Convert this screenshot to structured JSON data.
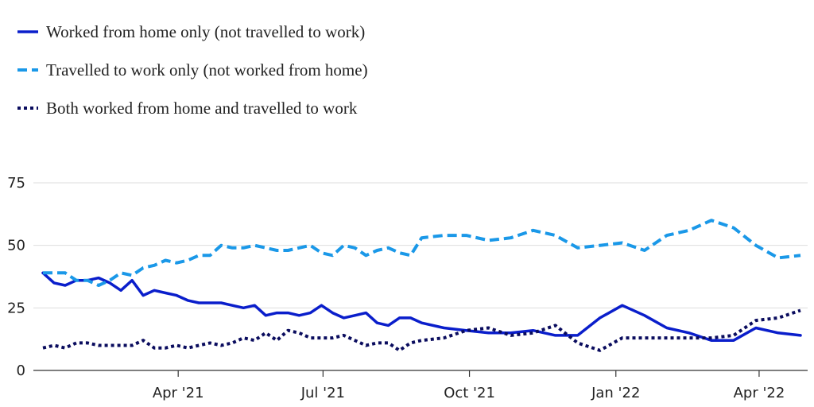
{
  "chart_data": {
    "type": "line",
    "title": "",
    "xlabel": "",
    "ylabel": "",
    "ylim": [
      0,
      75
    ],
    "yticks": [
      "0",
      "25",
      "50",
      "75"
    ],
    "xticks": [
      "Apr '21",
      "Jul '21",
      "Oct '21",
      "Jan '22",
      "Apr '22"
    ],
    "grid": "horizontal",
    "legend": "top-left",
    "x": [
      "Jan 6 '21",
      "Jan 13 '21",
      "Jan 20 '21",
      "Jan 27 '21",
      "Feb 3 '21",
      "Feb 10 '21",
      "Feb 17 '21",
      "Feb 24 '21",
      "Mar 3 '21",
      "Mar 10 '21",
      "Mar 17 '21",
      "Mar 24 '21",
      "Mar 31 '21",
      "Apr 7 '21",
      "Apr 14 '21",
      "Apr 21 '21",
      "Apr 28 '21",
      "May 5 '21",
      "May 12 '21",
      "May 19 '21",
      "May 26 '21",
      "Jun 2 '21",
      "Jun 9 '21",
      "Jun 16 '21",
      "Jun 23 '21",
      "Jun 30 '21",
      "Jul 7 '21",
      "Jul 14 '21",
      "Jul 21 '21",
      "Jul 28 '21",
      "Aug 4 '21",
      "Aug 11 '21",
      "Aug 18 '21",
      "Aug 25 '21",
      "Sep 1 '21",
      "Sep 15 '21",
      "Sep 29 '21",
      "Oct 13 '21",
      "Oct 27 '21",
      "Nov 10 '21",
      "Nov 24 '21",
      "Dec 8 '21",
      "Dec 22 '21",
      "Jan 5 '22",
      "Jan 19 '22",
      "Feb 2 '22",
      "Feb 16 '22",
      "Mar 2 '22",
      "Mar 16 '22",
      "Mar 30 '22",
      "Apr 13 '22",
      "Apr 27 '22"
    ],
    "series": [
      {
        "name": "Worked from home only (not travelled to work)",
        "color": "#0a1ecb",
        "style": "solid",
        "values": [
          39,
          35,
          34,
          36,
          36,
          37,
          35,
          32,
          36,
          30,
          32,
          31,
          30,
          28,
          27,
          27,
          27,
          26,
          25,
          26,
          22,
          23,
          23,
          22,
          23,
          26,
          23,
          21,
          22,
          23,
          19,
          18,
          21,
          21,
          19,
          17,
          16,
          15,
          15,
          16,
          14,
          14,
          21,
          26,
          22,
          17,
          15,
          12,
          12,
          17,
          15,
          14
        ]
      },
      {
        "name": "Travelled to work only (not worked from home)",
        "color": "#1a98e8",
        "style": "dashed",
        "values": [
          39,
          39,
          39,
          36,
          36,
          34,
          36,
          39,
          38,
          41,
          42,
          44,
          43,
          44,
          46,
          46,
          50,
          49,
          49,
          50,
          49,
          48,
          48,
          49,
          50,
          47,
          46,
          50,
          49,
          46,
          48,
          49,
          47,
          46,
          53,
          54,
          54,
          52,
          53,
          56,
          54,
          49,
          50,
          51,
          48,
          54,
          56,
          60,
          57,
          50,
          45,
          46
        ]
      },
      {
        "name": "Both worked from home and travelled to work",
        "color": "#0a0c5e",
        "style": "dotted",
        "values": [
          9,
          10,
          9,
          11,
          11,
          10,
          10,
          10,
          10,
          12,
          9,
          9,
          10,
          9,
          10,
          11,
          10,
          11,
          13,
          12,
          15,
          12,
          16,
          15,
          13,
          13,
          13,
          14,
          12,
          10,
          11,
          11,
          8,
          11,
          12,
          13,
          16,
          17,
          14,
          15,
          18,
          11,
          8,
          13,
          13,
          13,
          13,
          13,
          14,
          20,
          21,
          24
        ]
      }
    ]
  }
}
